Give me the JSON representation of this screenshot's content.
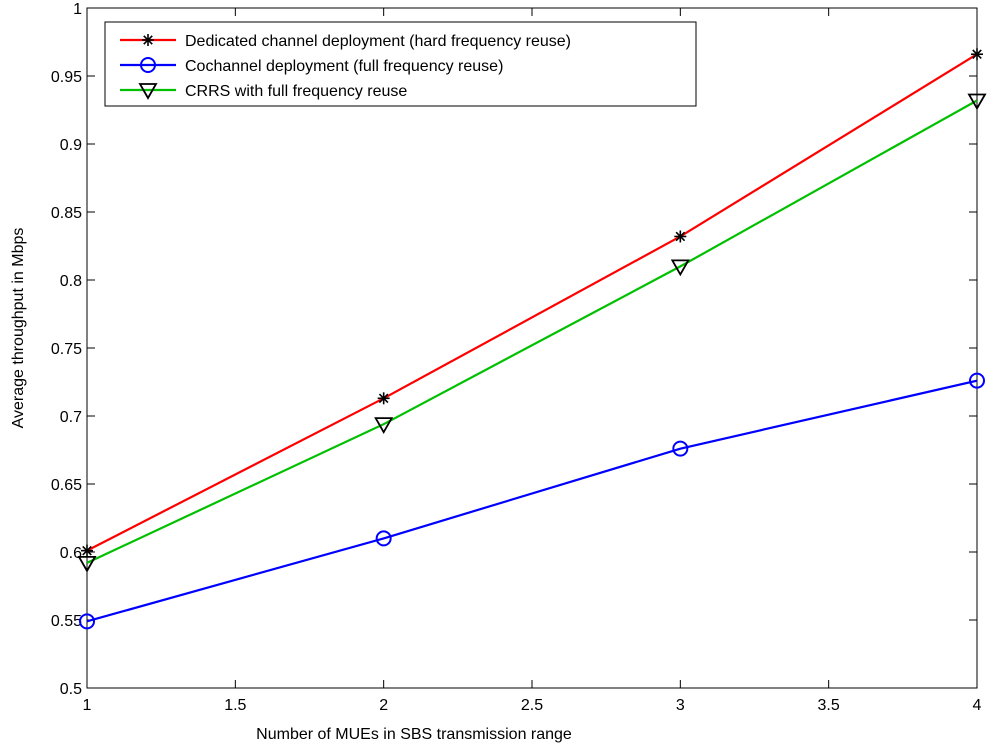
{
  "chart_data": {
    "type": "line",
    "title": "",
    "xlabel": "Number of MUEs in SBS transmission range",
    "ylabel": "Average throughput in Mbps",
    "xlim": [
      1,
      4
    ],
    "ylim": [
      0.5,
      1
    ],
    "x_ticks": [
      1,
      1.5,
      2,
      2.5,
      3,
      3.5,
      4
    ],
    "x_tick_labels": [
      "1",
      "1.5",
      "2",
      "2.5",
      "3",
      "3.5",
      "4"
    ],
    "y_ticks": [
      0.5,
      0.55,
      0.6,
      0.65,
      0.7,
      0.75,
      0.8,
      0.85,
      0.9,
      0.95,
      1
    ],
    "y_tick_labels": [
      "0.5",
      "0.55",
      "0.6",
      "0.65",
      "0.7",
      "0.75",
      "0.8",
      "0.85",
      "0.9",
      "0.95",
      "1"
    ],
    "grid": false,
    "legend_position": "top-left",
    "x": [
      1,
      2,
      3,
      4
    ],
    "series": [
      {
        "name": "Dedicated channel deployment (hard frequency reuse)",
        "values": [
          0.601,
          0.713,
          0.832,
          0.966
        ],
        "color": "#ff0000",
        "marker": "asterisk"
      },
      {
        "name": "Cochannel deployment (full frequency reuse)",
        "values": [
          0.549,
          0.61,
          0.676,
          0.726
        ],
        "color": "#0000ff",
        "marker": "circle"
      },
      {
        "name": "CRRS with full frequency reuse",
        "values": [
          0.592,
          0.694,
          0.81,
          0.932
        ],
        "color": "#00c000",
        "marker": "triangle-down"
      }
    ]
  }
}
